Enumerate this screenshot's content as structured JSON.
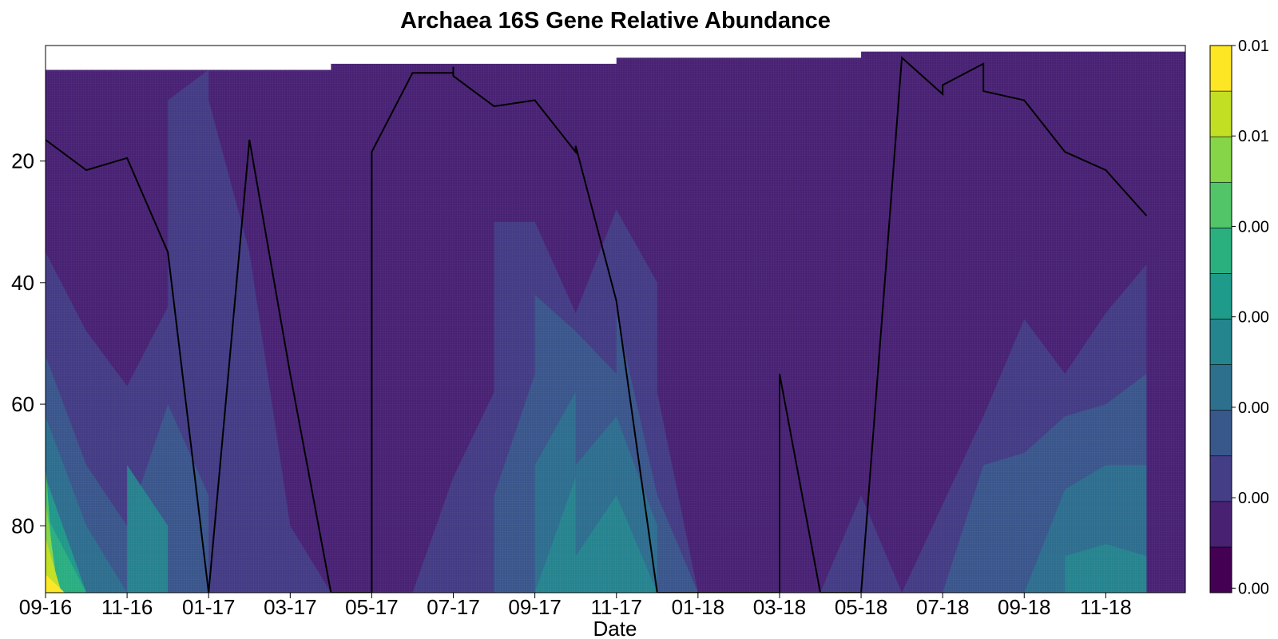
{
  "chart_data": {
    "type": "heatmap",
    "subtype": "filled-contour",
    "title": "Archaea 16S Gene Relative Abundance",
    "xlabel": "Date",
    "ylabel": "",
    "x_tick_labels": [
      "09-16",
      "11-16",
      "01-17",
      "03-17",
      "05-17",
      "07-17",
      "09-17",
      "11-17",
      "01-18",
      "03-18",
      "05-18",
      "07-18",
      "09-18",
      "11-18"
    ],
    "y_ticks": [
      20,
      40,
      60,
      80
    ],
    "ylim": [
      91,
      1
    ],
    "y_inverted": true,
    "colormap": "viridis",
    "colorbar": {
      "levels": 12,
      "tick_labels": [
        "0.01",
        "0.01",
        "0.00",
        "0.00",
        "0.00",
        "0.00",
        "0.00"
      ],
      "colors": [
        "#440154",
        "#482173",
        "#433e85",
        "#38588c",
        "#2d708e",
        "#25858e",
        "#1e9b8a",
        "#2ab07f",
        "#52c569",
        "#86d549",
        "#c2df23",
        "#fde725"
      ]
    },
    "surface_top_steps": [
      {
        "from": "09-16",
        "to": "04-17",
        "depth": 5
      },
      {
        "from": "04-17",
        "to": "11-17",
        "depth": 4
      },
      {
        "from": "11-17",
        "to": "05-18",
        "depth": 3
      },
      {
        "from": "05-18",
        "to": "11-18",
        "depth": 2
      }
    ],
    "series": [
      {
        "name": "",
        "color": "#000000",
        "points": [
          [
            "09-16",
            16.5
          ],
          [
            "10-16",
            21.5
          ],
          [
            "11-16",
            19.5
          ],
          [
            "12-16",
            35
          ],
          [
            "01-17",
            91
          ],
          [
            "01-17",
            91
          ],
          [
            "02-17",
            16.5
          ],
          [
            "03-17",
            55
          ],
          [
            "04-17",
            91
          ],
          [
            "05-17",
            91
          ],
          [
            "05-17",
            18.5
          ],
          [
            "06-17",
            5.5
          ],
          [
            "07-17",
            5.5
          ],
          [
            "07-17",
            4.5
          ],
          [
            "07-17",
            6
          ],
          [
            "08-17",
            11
          ],
          [
            "09-17",
            10
          ],
          [
            "10-17",
            18.5
          ],
          [
            "10-17",
            17.5
          ],
          [
            "11-17",
            43
          ],
          [
            "12-17",
            91
          ],
          [
            "03-18",
            91
          ],
          [
            "03-18",
            55
          ],
          [
            "04-18",
            91
          ],
          [
            "05-18",
            91
          ],
          [
            "06-18",
            3
          ],
          [
            "07-18",
            9
          ],
          [
            "07-18",
            7.5
          ],
          [
            "08-18",
            4
          ],
          [
            "08-18",
            8.5
          ],
          [
            "09-18",
            10
          ],
          [
            "10-18",
            18.5
          ],
          [
            "11-18",
            21.5
          ],
          [
            "12-18",
            29
          ]
        ]
      }
    ],
    "abundance_field": {
      "note": "low relative abundance (dark purple) through most of the water column; elevated values near bottom depths in 09-16, 11-16, 09-17, 11-17 and 09-18 to 11-18"
    }
  }
}
